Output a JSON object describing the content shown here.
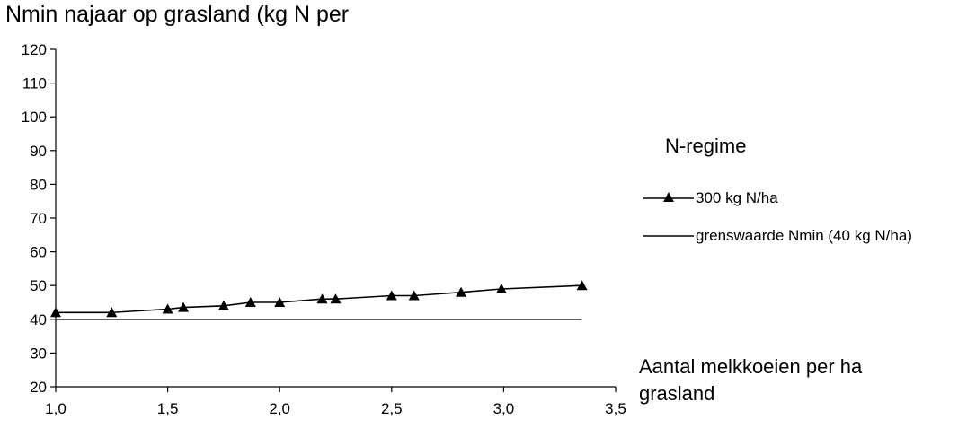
{
  "chart_data": {
    "type": "line",
    "title": "Nmin najaar op grasland (kg N per",
    "xlabel": "Aantal melkkoeien per ha grasland",
    "ylabel": "",
    "xlim": [
      1.0,
      3.5
    ],
    "ylim": [
      20,
      120
    ],
    "xticks": [
      "1,0",
      "1,5",
      "2,0",
      "2,5",
      "3,0",
      "3,5"
    ],
    "yticks": [
      "20",
      "30",
      "40",
      "50",
      "60",
      "70",
      "80",
      "90",
      "100",
      "110",
      "120"
    ],
    "legend_title": "N-regime",
    "legend_position": "right",
    "grid": false,
    "series": [
      {
        "name": "300 kg N/ha",
        "marker": "triangle",
        "x": [
          1.0,
          1.25,
          1.5,
          1.57,
          1.75,
          1.87,
          2.0,
          2.19,
          2.25,
          2.5,
          2.6,
          2.81,
          2.99,
          3.35
        ],
        "y": [
          42,
          42,
          43,
          43.5,
          44,
          45,
          45,
          46,
          46,
          47,
          47,
          48,
          49,
          50
        ]
      },
      {
        "name": "grenswaarde Nmin (40 kg N/ha)",
        "marker": "none",
        "x": [
          1.0,
          3.35
        ],
        "y": [
          40,
          40
        ]
      }
    ]
  }
}
